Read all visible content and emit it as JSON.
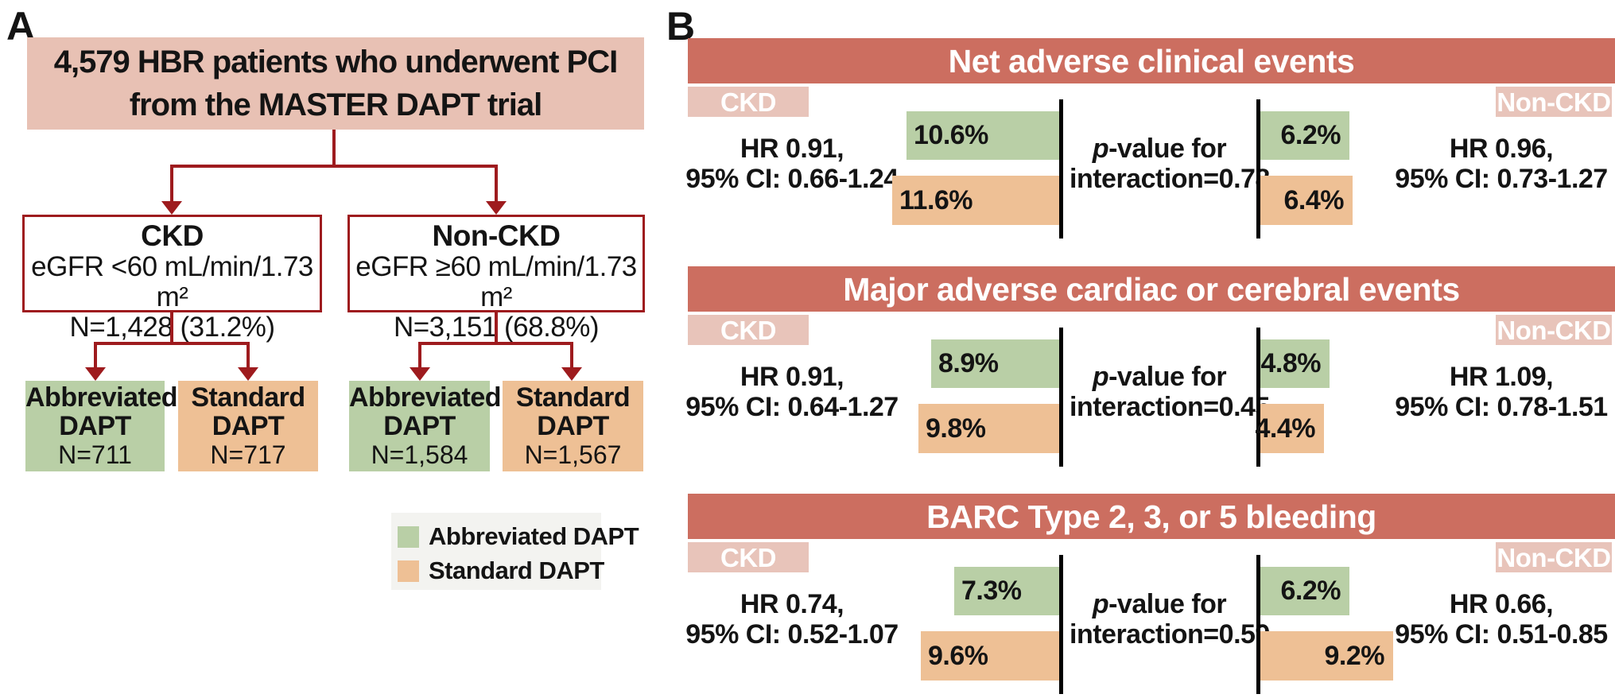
{
  "figure": {
    "panel_a_label": "A",
    "panel_b_label": "B"
  },
  "colors": {
    "brick_red": "#9e1b1e",
    "panel_a_title_bg": "#e8c1b4",
    "header_salmon": "#cc6e60",
    "tag_pink": "#e8c4ba",
    "green": "#b9cfa6",
    "orange": "#eec095",
    "legend_bg": "#f3f3f0"
  },
  "panel_a": {
    "title_line1": "4,579 HBR patients who underwent PCI",
    "title_line2": "from the MASTER DAPT trial",
    "groups": [
      {
        "name": "CKD",
        "criteria": "eGFR <60 mL/min/1.73 m²",
        "n": "N=1,428 (31.2%)"
      },
      {
        "name": "Non-CKD",
        "criteria": "eGFR ≥60 mL/min/1.73 m²",
        "n": "N=3,151 (68.8%)"
      }
    ],
    "arms": [
      {
        "line1": "Abbreviated",
        "line2": "DAPT",
        "n": "N=711"
      },
      {
        "line1": "Standard",
        "line2": "DAPT",
        "n": "N=717"
      },
      {
        "line1": "Abbreviated",
        "line2": "DAPT",
        "n": "N=1,584"
      },
      {
        "line1": "Standard",
        "line2": "DAPT",
        "n": "N=1,567"
      }
    ],
    "legend": [
      {
        "label": "Abbreviated DAPT"
      },
      {
        "label": "Standard DAPT"
      }
    ]
  },
  "panel_b": {
    "sections": [
      {
        "title": "Net adverse clinical events",
        "left_tag": "CKD",
        "right_tag": "Non-CKD",
        "left_hr1": "HR 0.91,",
        "left_hr2": "95% CI: 0.66-1.24",
        "right_hr1": "HR 0.96,",
        "right_hr2": "95% CI: 0.73-1.27",
        "p_italic": "p",
        "p_rest": "-value for",
        "p_line2": "interaction=0.78",
        "left_abbreviated_pct": 10.6,
        "left_abbreviated_label": "10.6%",
        "left_standard_pct": 11.6,
        "left_standard_label": "11.6%",
        "right_abbreviated_pct": 6.2,
        "right_abbreviated_label": "6.2%",
        "right_standard_pct": 6.4,
        "right_standard_label": "6.4%"
      },
      {
        "title": "Major adverse cardiac or cerebral events",
        "left_tag": "CKD",
        "right_tag": "Non-CKD",
        "left_hr1": "HR 0.91,",
        "left_hr2": "95% CI: 0.64-1.27",
        "right_hr1": "HR 1.09,",
        "right_hr2": "95% CI: 0.78-1.51",
        "p_italic": "p",
        "p_rest": "-value for",
        "p_line2": "interaction=0.45",
        "left_abbreviated_pct": 8.9,
        "left_abbreviated_label": "8.9%",
        "left_standard_pct": 9.8,
        "left_standard_label": "9.8%",
        "right_abbreviated_pct": 4.8,
        "right_abbreviated_label": "4.8%",
        "right_standard_pct": 4.4,
        "right_standard_label": "4.4%"
      },
      {
        "title": "BARC Type 2, 3, or 5 bleeding",
        "left_tag": "CKD",
        "right_tag": "Non-CKD",
        "left_hr1": "HR 0.74,",
        "left_hr2": "95% CI: 0.52-1.07",
        "right_hr1": "HR 0.66,",
        "right_hr2": "95% CI: 0.51-0.85",
        "p_italic": "p",
        "p_rest": "-value for",
        "p_line2": "interaction=0.59",
        "left_abbreviated_pct": 7.3,
        "left_abbreviated_label": "7.3%",
        "left_standard_pct": 9.6,
        "left_standard_label": "9.6%",
        "right_abbreviated_pct": 6.2,
        "right_abbreviated_label": "6.2%",
        "right_standard_pct": 9.2,
        "right_standard_label": "9.2%"
      }
    ]
  },
  "chart_data": [
    {
      "type": "bar",
      "title": "Net adverse clinical events",
      "categories": [
        "CKD",
        "Non-CKD"
      ],
      "series": [
        {
          "name": "Abbreviated DAPT",
          "values": [
            10.6,
            6.2
          ]
        },
        {
          "name": "Standard DAPT",
          "values": [
            11.6,
            6.4
          ]
        }
      ],
      "unit": "%",
      "annotations": {
        "ckd_hr": "HR 0.91, 95% CI: 0.66-1.24",
        "non_ckd_hr": "HR 0.96, 95% CI: 0.73-1.27",
        "p_interaction": "0.78"
      }
    },
    {
      "type": "bar",
      "title": "Major adverse cardiac or cerebral events",
      "categories": [
        "CKD",
        "Non-CKD"
      ],
      "series": [
        {
          "name": "Abbreviated DAPT",
          "values": [
            8.9,
            4.8
          ]
        },
        {
          "name": "Standard DAPT",
          "values": [
            9.8,
            4.4
          ]
        }
      ],
      "unit": "%",
      "annotations": {
        "ckd_hr": "HR 0.91, 95% CI: 0.64-1.27",
        "non_ckd_hr": "HR 1.09, 95% CI: 0.78-1.51",
        "p_interaction": "0.45"
      }
    },
    {
      "type": "bar",
      "title": "BARC Type 2, 3, or 5 bleeding",
      "categories": [
        "CKD",
        "Non-CKD"
      ],
      "series": [
        {
          "name": "Abbreviated DAPT",
          "values": [
            7.3,
            6.2
          ]
        },
        {
          "name": "Standard DAPT",
          "values": [
            9.6,
            9.2
          ]
        }
      ],
      "unit": "%",
      "annotations": {
        "ckd_hr": "HR 0.74, 95% CI: 0.52-1.07",
        "non_ckd_hr": "HR 0.66, 95% CI: 0.51-0.85",
        "p_interaction": "0.59"
      }
    }
  ]
}
